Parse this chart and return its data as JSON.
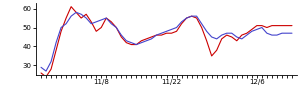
{
  "red_x": [
    0,
    1,
    2,
    3,
    4,
    5,
    6,
    7,
    8,
    9,
    10,
    11,
    12,
    13,
    14,
    15,
    16,
    17,
    18,
    19,
    20,
    21,
    22,
    23,
    24,
    25,
    26,
    27,
    28,
    29,
    30,
    31,
    32,
    33,
    34,
    35,
    36,
    37,
    38,
    39,
    40,
    41,
    42,
    43,
    44,
    45,
    46,
    47,
    48,
    49,
    50
  ],
  "red_y": [
    26,
    24,
    28,
    38,
    48,
    55,
    61,
    58,
    55,
    57,
    53,
    48,
    50,
    55,
    53,
    50,
    45,
    42,
    41,
    41,
    43,
    44,
    45,
    46,
    46,
    47,
    47,
    48,
    52,
    55,
    56,
    55,
    50,
    43,
    35,
    38,
    44,
    46,
    45,
    43,
    46,
    47,
    49,
    51,
    51,
    50,
    51,
    51,
    51,
    51,
    51
  ],
  "blue_x": [
    0,
    1,
    2,
    3,
    4,
    5,
    6,
    7,
    8,
    9,
    10,
    11,
    12,
    13,
    14,
    15,
    16,
    17,
    18,
    19,
    20,
    21,
    22,
    23,
    24,
    25,
    26,
    27,
    28,
    29,
    30,
    31,
    32,
    33,
    34,
    35,
    36,
    37,
    38,
    39,
    40,
    41,
    42,
    43,
    44,
    45,
    46,
    47,
    48,
    49,
    50
  ],
  "blue_y": [
    29,
    27,
    32,
    42,
    50,
    52,
    56,
    58,
    57,
    55,
    52,
    53,
    54,
    55,
    52,
    50,
    46,
    43,
    42,
    41,
    42,
    43,
    44,
    46,
    47,
    48,
    49,
    50,
    53,
    55,
    56,
    56,
    52,
    48,
    45,
    44,
    46,
    47,
    47,
    45,
    44,
    46,
    48,
    49,
    50,
    47,
    46,
    46,
    47,
    47,
    47
  ],
  "red_color": "#cc0000",
  "blue_color": "#4444cc",
  "ylim": [
    25,
    63
  ],
  "yticks": [
    30,
    40,
    50,
    60
  ],
  "xtick_positions": [
    12,
    26,
    43
  ],
  "xtick_labels": [
    "11/8",
    "11/22",
    "12/6"
  ],
  "background": "#ffffff",
  "xlim": [
    -1,
    51
  ]
}
